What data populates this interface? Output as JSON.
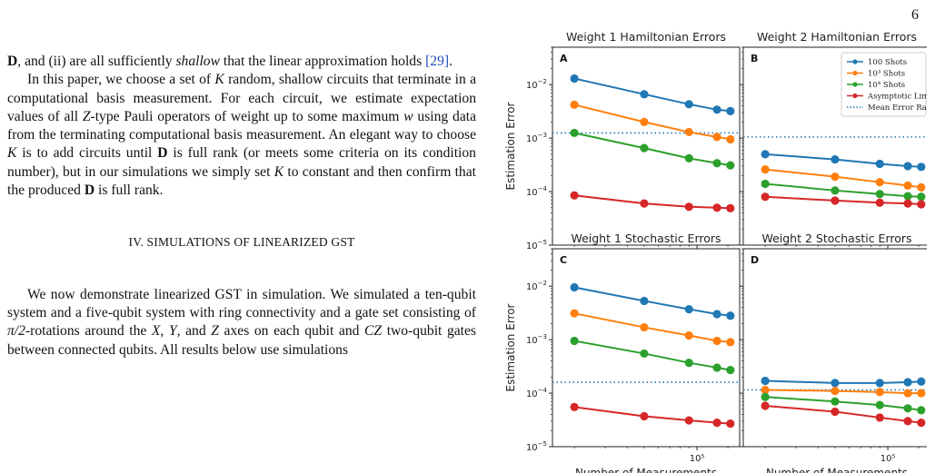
{
  "page_number": "6",
  "text": {
    "p1": [
      {
        "t": "D",
        "b": true
      },
      {
        "t": ", and (ii) are all sufficiently "
      },
      {
        "t": "shallow",
        "i": true
      },
      {
        "t": " that the linear approximation holds "
      },
      {
        "t": "[29]",
        "c": true
      },
      {
        "t": "."
      }
    ],
    "p2": [
      {
        "t": "In this paper, we choose a set of "
      },
      {
        "t": "K",
        "i": true
      },
      {
        "t": " random, shallow circuits that terminate in a computational basis measurement. For each circuit, we estimate expectation values of all "
      },
      {
        "t": "Z",
        "i": true
      },
      {
        "t": "-type Pauli operators of weight up to some maximum "
      },
      {
        "t": "w",
        "i": true
      },
      {
        "t": " using data from the terminating computational basis measurement. An elegant way to choose "
      },
      {
        "t": "K",
        "i": true
      },
      {
        "t": " is to add circuits until "
      },
      {
        "t": "D",
        "b": true
      },
      {
        "t": " is full rank (or meets some criteria on its condition number), but in our simulations we simply set "
      },
      {
        "t": "K",
        "i": true
      },
      {
        "t": " to constant and then confirm that the produced "
      },
      {
        "t": "D",
        "b": true
      },
      {
        "t": " is full rank."
      }
    ],
    "section_heading": "IV.   SIMULATIONS OF LINEARIZED GST",
    "p3": [
      {
        "t": "We now demonstrate linearized GST in simulation. We simulated a ten-qubit system and a five-qubit system with ring connectivity and a gate set consisting of "
      },
      {
        "t": "π/2",
        "i": true
      },
      {
        "t": "-rotations around the "
      },
      {
        "t": "X",
        "i": true
      },
      {
        "t": ", "
      },
      {
        "t": "Y",
        "i": true
      },
      {
        "t": ", and "
      },
      {
        "t": "Z",
        "i": true
      },
      {
        "t": " axes on each qubit and "
      },
      {
        "t": "CZ",
        "i": true
      },
      {
        "t": " two-qubit gates between connected qubits. All results below use simulations"
      }
    ]
  },
  "figure": {
    "ylabel": "Estimation Error",
    "xlabel": "Number of Measurements",
    "xtick_label": "10⁵",
    "legend": [
      "100 Shots",
      "10³ Shots",
      "10⁴ Shots",
      "Asymptotic Limit",
      "Mean Error Rate"
    ],
    "colors": {
      "blue": "#1f77b4",
      "orange": "#ff7f0e",
      "green": "#2ca02c",
      "red": "#d62728"
    }
  },
  "chart_data": [
    {
      "type": "line",
      "panel": "A",
      "title": "Weight 1 Hamiltonian Errors",
      "xlabel": "",
      "ylabel": "Estimation Error",
      "yscale": "log",
      "xscale": "log",
      "xlim": [
        15000,
        175000
      ],
      "ylim": [
        1e-05,
        0.05
      ],
      "x": [
        20000,
        50000,
        90000,
        130000,
        155000
      ],
      "mean_error_rate": 0.00125,
      "series": [
        {
          "name": "100 Shots",
          "values": [
            0.013,
            0.0066,
            0.0043,
            0.0034,
            0.0032
          ]
        },
        {
          "name": "10³ Shots",
          "values": [
            0.0042,
            0.002,
            0.0013,
            0.00105,
            0.00095
          ]
        },
        {
          "name": "10⁴ Shots",
          "values": [
            0.00125,
            0.00065,
            0.00042,
            0.00034,
            0.00031
          ]
        },
        {
          "name": "Asymptotic Limit",
          "values": [
            8.5e-05,
            6e-05,
            5.2e-05,
            5e-05,
            4.9e-05
          ]
        }
      ]
    },
    {
      "type": "line",
      "panel": "B",
      "title": "Weight 2 Hamiltonian Errors",
      "xlabel": "",
      "ylabel": "",
      "yscale": "log",
      "xscale": "log",
      "xlim": [
        15000,
        175000
      ],
      "ylim": [
        1e-05,
        0.05
      ],
      "x": [
        20000,
        50000,
        90000,
        130000,
        155000
      ],
      "mean_error_rate": 0.00105,
      "legend_position": "top-right",
      "series": [
        {
          "name": "100 Shots",
          "values": [
            0.0005,
            0.0004,
            0.00033,
            0.0003,
            0.00029
          ]
        },
        {
          "name": "10³ Shots",
          "values": [
            0.00026,
            0.00019,
            0.00015,
            0.00013,
            0.00012
          ]
        },
        {
          "name": "10⁴ Shots",
          "values": [
            0.00014,
            0.000105,
            9e-05,
            8.2e-05,
            8e-05
          ]
        },
        {
          "name": "Asymptotic Limit",
          "values": [
            8e-05,
            6.8e-05,
            6.2e-05,
            6e-05,
            5.8e-05
          ]
        }
      ]
    },
    {
      "type": "line",
      "panel": "C",
      "title": "Weight 1 Stochastic Errors",
      "xlabel": "Number of Measurements",
      "ylabel": "Estimation Error",
      "yscale": "log",
      "xscale": "log",
      "xlim": [
        15000,
        175000
      ],
      "ylim": [
        1e-05,
        0.05
      ],
      "x": [
        20000,
        50000,
        90000,
        130000,
        155000
      ],
      "mean_error_rate": 0.00016,
      "series": [
        {
          "name": "100 Shots",
          "values": [
            0.0095,
            0.0053,
            0.0037,
            0.003,
            0.0028
          ]
        },
        {
          "name": "10³ Shots",
          "values": [
            0.0031,
            0.0017,
            0.0012,
            0.00095,
            0.0009
          ]
        },
        {
          "name": "10⁴ Shots",
          "values": [
            0.00095,
            0.00055,
            0.00037,
            0.0003,
            0.00027
          ]
        },
        {
          "name": "Asymptotic Limit",
          "values": [
            5.5e-05,
            3.7e-05,
            3.1e-05,
            2.8e-05,
            2.7e-05
          ]
        }
      ]
    },
    {
      "type": "line",
      "panel": "D",
      "title": "Weight 2 Stochastic Errors",
      "xlabel": "Number of Measurements",
      "ylabel": "",
      "yscale": "log",
      "xscale": "log",
      "xlim": [
        15000,
        175000
      ],
      "ylim": [
        1e-05,
        0.05
      ],
      "x": [
        20000,
        50000,
        90000,
        130000,
        155000
      ],
      "mean_error_rate": 0.000115,
      "series": [
        {
          "name": "100 Shots",
          "values": [
            0.00017,
            0.000155,
            0.000155,
            0.00016,
            0.000165
          ]
        },
        {
          "name": "10³ Shots",
          "values": [
            0.000115,
            0.00011,
            0.000105,
            0.0001,
            0.0001
          ]
        },
        {
          "name": "10⁴ Shots",
          "values": [
            8.5e-05,
            7e-05,
            6e-05,
            5.2e-05,
            4.8e-05
          ]
        },
        {
          "name": "Asymptotic Limit",
          "values": [
            5.8e-05,
            4.5e-05,
            3.5e-05,
            3e-05,
            2.8e-05
          ]
        }
      ]
    }
  ]
}
